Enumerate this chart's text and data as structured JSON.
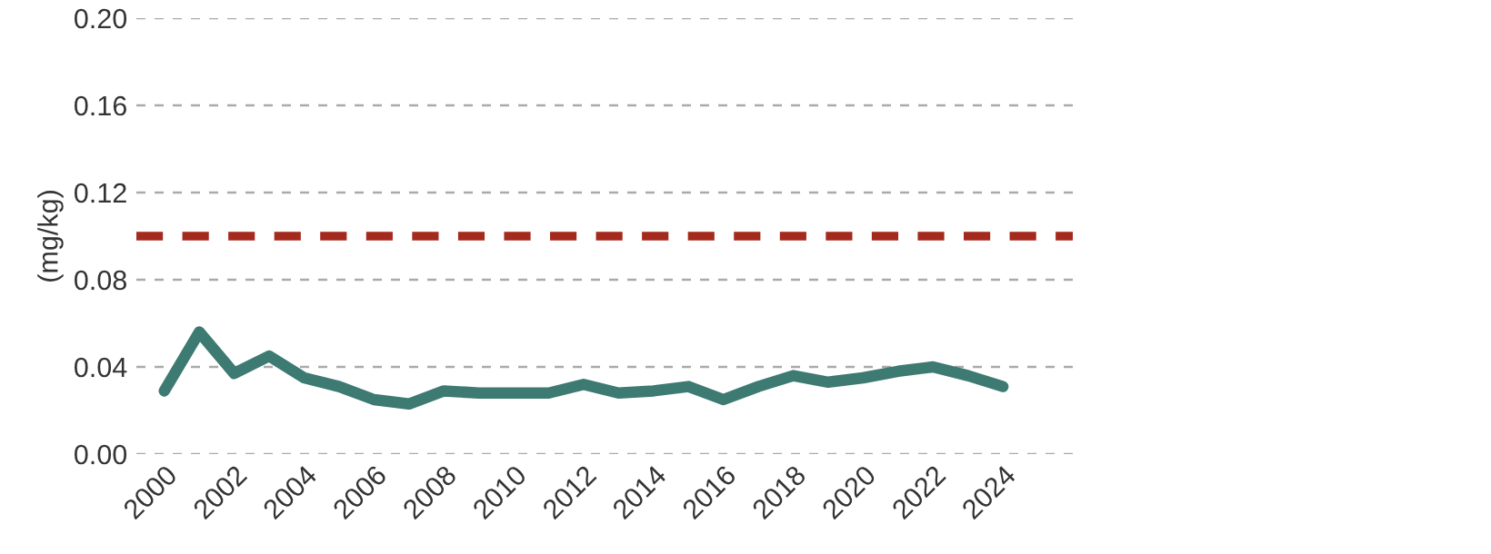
{
  "chart_data": {
    "type": "line",
    "ylabel": "(mg/kg)",
    "x": [
      2000,
      2001,
      2002,
      2003,
      2004,
      2005,
      2006,
      2007,
      2008,
      2009,
      2010,
      2011,
      2012,
      2013,
      2014,
      2015,
      2016,
      2017,
      2018,
      2019,
      2020,
      2021,
      2022,
      2023,
      2024
    ],
    "series": [
      {
        "color": "#3d7a72",
        "values": [
          0.029,
          0.056,
          0.037,
          0.045,
          0.035,
          0.031,
          0.025,
          0.023,
          0.029,
          0.028,
          0.028,
          0.028,
          0.032,
          0.028,
          0.029,
          0.031,
          0.025,
          0.031,
          0.036,
          0.033,
          0.035,
          0.038,
          0.04,
          0.036,
          0.031
        ]
      }
    ],
    "ref_lines": [
      {
        "axis": "y",
        "value": 0.1,
        "color": "#a52a1e",
        "line_style": "dashed"
      }
    ],
    "xlim": [
      1999.2,
      2026
    ],
    "xticks": [
      2000,
      2002,
      2004,
      2006,
      2008,
      2010,
      2012,
      2014,
      2016,
      2018,
      2020,
      2022,
      2024
    ],
    "ylim": [
      0,
      0.2
    ],
    "yticks": [
      {
        "value": 0,
        "label": "0.00"
      },
      {
        "value": 0.04,
        "label": "0.04"
      },
      {
        "value": 0.08,
        "label": "0.08"
      },
      {
        "value": 0.12,
        "label": "0.12"
      },
      {
        "value": 0.16,
        "label": "0.16"
      },
      {
        "value": 0.2,
        "label": "0.20"
      }
    ],
    "grid": "y",
    "marker": "none",
    "line_style": "solid"
  }
}
